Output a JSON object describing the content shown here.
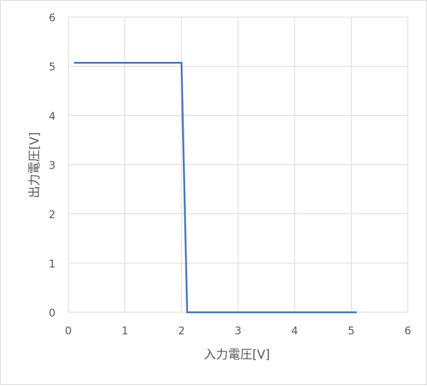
{
  "chart_data": {
    "type": "line",
    "title": "",
    "xlabel": "入力電圧[V]",
    "ylabel": "出力電圧[V]",
    "xlim": [
      0,
      6
    ],
    "ylim": [
      0,
      6
    ],
    "xticks": [
      "0",
      "1",
      "2",
      "3",
      "4",
      "5",
      "6"
    ],
    "yticks": [
      "0",
      "1",
      "2",
      "3",
      "4",
      "5",
      "6"
    ],
    "grid": true,
    "legend": "none",
    "series": [
      {
        "color": "#4472c4",
        "x": [
          0.1,
          2.0,
          2.1,
          5.1
        ],
        "y": [
          5.07,
          5.07,
          0.0,
          0.0
        ]
      }
    ]
  },
  "colors": {
    "grid": "#d9d9d9",
    "text": "#595959",
    "frame": "#d9d9d9"
  }
}
